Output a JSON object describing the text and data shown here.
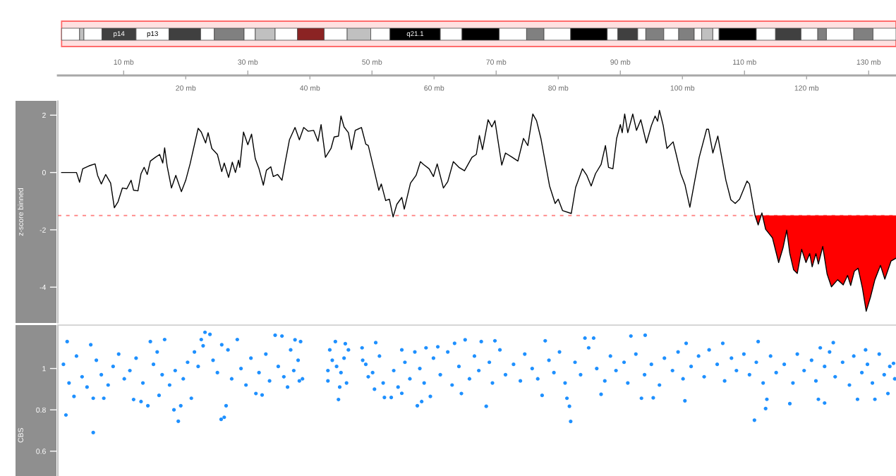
{
  "chart_data": [
    {
      "type": "bar",
      "orientation": "horizontal",
      "stacked": true,
      "categories": [
        null
      ],
      "series": [
        {
          "color": "#ffffff",
          "values": [
            2.9
          ]
        },
        {
          "color": "#c0c0c0",
          "values": [
            0.7
          ]
        },
        {
          "color": "#ffffff",
          "values": [
            2.9
          ]
        },
        {
          "name": "p14",
          "color": "#404040",
          "values": [
            5.5
          ]
        },
        {
          "name": "p13",
          "color": "#ffffff",
          "values": [
            5.3
          ]
        },
        {
          "color": "#404040",
          "values": [
            5.1
          ]
        },
        {
          "color": "#ffffff",
          "values": [
            2.2
          ]
        },
        {
          "color": "#808080",
          "values": [
            4.8
          ]
        },
        {
          "color": "#ffffff",
          "values": [
            1.8
          ]
        },
        {
          "color": "#c0c0c0",
          "values": [
            3.2
          ]
        },
        {
          "color": "#ffffff",
          "values": [
            3.6
          ]
        },
        {
          "color": "#8b2323",
          "values": [
            4.3
          ]
        },
        {
          "color": "#ffffff",
          "values": [
            3.7
          ]
        },
        {
          "color": "#c0c0c0",
          "values": [
            3.8
          ]
        },
        {
          "color": "#ffffff",
          "values": [
            3.1
          ]
        },
        {
          "name": "q21.1",
          "color": "#000000",
          "values": [
            8.1
          ]
        },
        {
          "color": "#ffffff",
          "values": [
            3.5
          ]
        },
        {
          "color": "#000000",
          "values": [
            6.0
          ]
        },
        {
          "color": "#ffffff",
          "values": [
            4.4
          ]
        },
        {
          "color": "#808080",
          "values": [
            2.8
          ]
        },
        {
          "color": "#ffffff",
          "values": [
            4.3
          ]
        },
        {
          "color": "#000000",
          "values": [
            5.9
          ]
        },
        {
          "color": "#ffffff",
          "values": [
            1.7
          ]
        },
        {
          "color": "#404040",
          "values": [
            3.2
          ]
        },
        {
          "color": "#ffffff",
          "values": [
            1.3
          ]
        },
        {
          "color": "#808080",
          "values": [
            2.9
          ]
        },
        {
          "color": "#ffffff",
          "values": [
            2.4
          ]
        },
        {
          "color": "#808080",
          "values": [
            2.5
          ]
        },
        {
          "color": "#ffffff",
          "values": [
            1.2
          ]
        },
        {
          "color": "#c0c0c0",
          "values": [
            1.8
          ]
        },
        {
          "color": "#ffffff",
          "values": [
            1.0
          ]
        },
        {
          "color": "#000000",
          "values": [
            6.0
          ]
        },
        {
          "color": "#ffffff",
          "values": [
            3.1
          ]
        },
        {
          "color": "#404040",
          "values": [
            4.1
          ]
        },
        {
          "color": "#ffffff",
          "values": [
            2.7
          ]
        },
        {
          "color": "#808080",
          "values": [
            1.4
          ]
        },
        {
          "color": "#ffffff",
          "values": [
            4.4
          ]
        },
        {
          "color": "#808080",
          "values": [
            3.1
          ]
        },
        {
          "color": "#ffffff",
          "values": [
            3.7
          ]
        }
      ],
      "xlim": [
        -0.6,
        134.4
      ],
      "xticks": [
        {
          "value": 20,
          "label": "20 mb"
        },
        {
          "value": 40,
          "label": "40 mb"
        },
        {
          "value": 60,
          "label": "60 mb"
        },
        {
          "value": 80,
          "label": "80 mb"
        },
        {
          "value": 100,
          "label": "100 mb"
        },
        {
          "value": 120,
          "label": "120 mb"
        }
      ],
      "x2lim": [
        -0.6,
        134.4
      ],
      "x2ticks": [
        {
          "value": 10,
          "label": "10 mb"
        },
        {
          "value": 30,
          "label": "30 mb"
        },
        {
          "value": 50,
          "label": "50 mb"
        },
        {
          "value": 70,
          "label": "70 mb"
        },
        {
          "value": 90,
          "label": "90 mb"
        },
        {
          "value": 110,
          "label": "110 mb"
        },
        {
          "value": 130,
          "label": "130 mb"
        }
      ],
      "bands": [
        {
          "axis": "x",
          "from": 0,
          "to": 134.4,
          "color": "#ff0000"
        }
      ],
      "tick_labels": "x"
    },
    {
      "type": "line",
      "ylabel": "z-score binned",
      "series": [
        {
          "color": "#000000",
          "x": [
            0.0,
            2.4,
            2.9,
            3.4,
            4.4,
            5.4,
            5.8,
            6.4,
            7.1,
            7.9,
            8.5,
            9.1,
            9.8,
            10.5,
            11.2,
            11.6,
            12.3,
            12.8,
            13.3,
            13.8,
            14.3,
            15.1,
            15.8,
            16.3,
            16.6,
            17.0,
            17.7,
            18.4,
            19.3,
            20.0,
            20.7,
            22.0,
            22.5,
            23.2,
            23.6,
            24.2,
            25.1,
            25.8,
            26.2,
            26.9,
            27.5,
            28.0,
            28.5,
            28.7,
            29.3,
            30.0,
            30.6,
            31.2,
            31.8,
            32.5,
            33.0,
            33.7,
            34.1,
            34.8,
            35.5,
            36.0,
            36.7,
            37.6,
            38.3,
            39.0,
            39.7,
            40.6,
            41.3,
            41.8,
            42.5,
            43.4,
            43.9,
            44.6,
            45.0,
            45.5,
            46.2,
            46.7,
            47.3,
            48.3,
            49.0,
            49.4,
            50.4,
            51.1,
            51.5,
            52.2,
            52.8,
            53.4,
            54.0,
            54.8,
            55.2,
            56.2,
            57.1,
            57.8,
            58.3,
            59.2,
            59.9,
            60.5,
            61.5,
            62.2,
            63.1,
            64.0,
            64.9,
            66.1,
            66.8,
            67.3,
            67.8,
            68.7,
            69.3,
            69.8,
            70.9,
            71.5,
            72.6,
            73.5,
            74.4,
            75.1,
            75.9,
            76.5,
            77.2,
            78.6,
            79.5,
            80.0,
            80.7,
            82.1,
            82.8,
            83.9,
            84.6,
            85.3,
            86.0,
            86.9,
            87.6,
            88.1,
            88.8,
            89.4,
            90.0,
            90.3,
            90.7,
            91.2,
            92.0,
            92.6,
            93.3,
            94.2,
            95.0,
            95.6,
            96.0,
            96.3,
            96.9,
            97.5,
            98.5,
            99.0,
            99.7,
            100.4,
            101.2,
            102.0,
            102.7,
            103.9,
            104.2,
            104.9,
            105.7,
            107.0,
            107.8,
            108.5,
            109.2,
            110.4,
            110.8,
            111.7,
            112.2,
            112.8,
            113.4,
            114.5,
            115.5,
            116.2,
            116.8,
            117.3,
            117.9,
            118.5,
            119.2,
            119.9,
            120.5,
            120.9,
            121.5,
            121.9,
            122.6,
            123.3,
            124.0,
            125.0,
            125.9,
            126.6,
            127.1,
            127.7,
            128.3,
            129.0,
            129.6,
            130.3,
            131.0,
            131.9,
            132.6,
            133.6,
            134.4
          ],
          "values": [
            0.0,
            0.0,
            -0.34,
            0.13,
            0.23,
            0.3,
            -0.1,
            -0.4,
            -0.07,
            -0.37,
            -1.23,
            -1.02,
            -0.54,
            -0.57,
            -0.27,
            -0.62,
            -0.64,
            -0.04,
            0.18,
            -0.07,
            0.4,
            0.53,
            0.63,
            0.33,
            0.86,
            0.23,
            -0.54,
            -0.1,
            -0.67,
            -0.27,
            0.3,
            1.54,
            1.41,
            1.03,
            1.39,
            0.84,
            0.63,
            0.03,
            0.33,
            -0.17,
            0.36,
            0.0,
            0.43,
            0.18,
            1.41,
            0.97,
            1.34,
            0.48,
            0.13,
            -0.44,
            0.08,
            0.2,
            -0.14,
            -0.07,
            -0.27,
            0.33,
            1.14,
            1.57,
            1.14,
            1.57,
            1.44,
            1.47,
            1.09,
            1.67,
            0.53,
            0.84,
            1.24,
            1.27,
            1.97,
            1.59,
            1.39,
            0.8,
            1.47,
            1.57,
            0.99,
            0.94,
            0.03,
            -0.62,
            -0.4,
            -0.98,
            -0.93,
            -1.55,
            -1.11,
            -0.87,
            -1.28,
            -0.37,
            -0.1,
            0.38,
            0.28,
            0.13,
            -0.14,
            0.3,
            -0.54,
            -0.32,
            0.38,
            0.18,
            0.06,
            0.53,
            0.63,
            1.29,
            0.8,
            1.84,
            1.59,
            1.81,
            0.26,
            0.68,
            0.53,
            0.4,
            1.19,
            0.94,
            2.04,
            1.81,
            1.19,
            -0.47,
            -1.08,
            -0.93,
            -1.33,
            -1.43,
            -0.52,
            0.13,
            -0.1,
            -0.47,
            -0.04,
            0.28,
            0.94,
            0.18,
            0.13,
            1.19,
            1.67,
            1.39,
            2.04,
            1.39,
            2.04,
            1.47,
            1.84,
            1.03,
            1.64,
            1.97,
            1.79,
            2.17,
            1.64,
            0.84,
            1.07,
            0.63,
            -0.02,
            -0.42,
            -1.21,
            -0.27,
            0.53,
            1.51,
            1.51,
            0.68,
            1.27,
            -0.27,
            -0.95,
            -1.08,
            -0.93,
            -0.3,
            -0.4,
            -1.5,
            -1.83,
            -1.41,
            -1.98,
            -2.28,
            -3.14,
            -2.63,
            -2.01,
            -2.83,
            -3.39,
            -3.52,
            -2.68,
            -3.14,
            -2.83,
            -3.29,
            -2.83,
            -3.19,
            -2.58,
            -3.54,
            -3.99,
            -3.74,
            -3.92,
            -3.59,
            -3.94,
            -3.44,
            -3.34,
            -4.04,
            -4.84,
            -4.34,
            -3.74,
            -3.24,
            -3.72,
            -3.09,
            -2.99
          ]
        },
        {
          "type": "area",
          "color": "#ff0000",
          "x": [
            111.7,
            112.2,
            112.8,
            113.4,
            114.5,
            115.5,
            116.2,
            116.8,
            117.3,
            117.9,
            118.5,
            119.2,
            119.9,
            120.5,
            120.9,
            121.5,
            121.9,
            122.6,
            123.3,
            124.0,
            125.0,
            125.9,
            126.6,
            127.1,
            127.7,
            128.3,
            129.0,
            129.6,
            130.3,
            131.0,
            131.9,
            132.6,
            133.6,
            134.4
          ],
          "values": [
            -1.5,
            -1.83,
            -1.41,
            -1.98,
            -2.28,
            -3.14,
            -2.63,
            -2.01,
            -2.83,
            -3.39,
            -3.52,
            -2.68,
            -3.14,
            -2.83,
            -3.29,
            -2.83,
            -3.19,
            -2.58,
            -3.54,
            -3.99,
            -3.74,
            -3.92,
            -3.59,
            -3.94,
            -3.44,
            -3.34,
            -4.04,
            -4.84,
            -4.34,
            -3.74,
            -3.24,
            -3.72,
            -3.09,
            -2.99
          ]
        }
      ],
      "xlim": [
        -0.6,
        134.4
      ],
      "ylim": [
        -5.25,
        2.5
      ],
      "yticks": [
        -4,
        -2,
        0,
        2
      ],
      "ref_lines": [
        {
          "axis": "y",
          "value": -1.5,
          "color": "#ff7f7f",
          "line_style": "dashed"
        }
      ],
      "line_style": "solid",
      "tick_labels": "y"
    },
    {
      "type": "scatter",
      "ylabel": "CBS",
      "marker": "circle",
      "series": [
        {
          "color": "#1e90ff",
          "x": [
            0.3,
            0.7,
            0.9,
            1.2,
            2.0,
            2.4,
            3.3,
            4.1,
            4.7,
            5.1,
            5.1,
            5.6,
            6.4,
            6.8,
            7.5,
            8.3,
            9.2,
            10.1,
            11.0,
            11.6,
            12.0,
            12.8,
            13.1,
            13.9,
            14.3,
            14.8,
            15.4,
            15.7,
            16.2,
            16.6,
            17.4,
            18.1,
            18.3,
            18.8,
            19.2,
            19.6,
            20.3,
            20.9,
            21.4,
            22.0,
            22.5,
            22.8,
            23.1,
            23.9,
            24.4,
            25.1,
            25.7,
            25.8,
            26.2,
            26.5,
            26.8,
            27.4,
            28.3,
            28.9,
            29.7,
            30.5,
            31.3,
            31.8,
            32.3,
            32.9,
            33.5,
            34.4,
            34.9,
            35.5,
            35.8,
            36.4,
            36.9,
            37.4,
            37.6,
            38.1,
            38.3,
            38.5,
            38.8,
            42.9,
            42.9,
            43.2,
            43.6,
            44.1,
            44.3,
            44.6,
            44.8,
            45.0,
            45.5,
            45.7,
            45.9,
            46.2,
            48.4,
            48.5,
            49.0,
            49.4,
            50.1,
            50.4,
            50.6,
            51.2,
            51.8,
            52.0,
            53.1,
            53.5,
            54.2,
            54.8,
            54.8,
            55.3,
            56.1,
            56.9,
            57.3,
            57.7,
            58.0,
            58.4,
            58.7,
            59.4,
            59.9,
            60.6,
            61.0,
            62.2,
            62.9,
            63.3,
            64.0,
            64.4,
            65.0,
            65.7,
            66.5,
            67.2,
            67.6,
            68.4,
            68.9,
            69.4,
            69.8,
            70.6,
            71.5,
            72.8,
            73.9,
            74.6,
            75.8,
            76.7,
            77.4,
            77.9,
            78.5,
            79.3,
            80.2,
            81.1,
            81.4,
            81.8,
            82.0,
            82.7,
            83.6,
            84.3,
            84.9,
            85.7,
            86.2,
            86.9,
            87.5,
            88.4,
            89.3,
            90.6,
            91.2,
            91.7,
            92.5,
            93.4,
            93.9,
            94.0,
            95.0,
            95.3,
            96.3,
            97.1,
            98.4,
            99.3,
            100.1,
            100.4,
            100.6,
            101.4,
            102.6,
            103.5,
            104.3,
            105.6,
            106.5,
            106.8,
            107.9,
            108.7,
            109.9,
            110.8,
            111.6,
            111.9,
            112.2,
            113.0,
            113.4,
            113.6,
            114.2,
            115.1,
            116.4,
            117.3,
            117.8,
            118.5,
            119.6,
            120.8,
            121.5,
            121.9,
            122.2,
            122.9,
            122.9,
            123.7,
            124.3,
            124.6,
            125.8,
            126.9,
            127.6,
            128.2,
            128.9,
            129.5,
            129.8,
            130.6,
            131.0,
            131.7,
            132.5,
            133.1,
            133.4,
            134.0,
            134.2
          ],
          "values": [
            1.02,
            0.775,
            1.13,
            0.93,
            0.865,
            1.06,
            0.96,
            0.91,
            1.115,
            0.69,
            0.856,
            1.04,
            0.97,
            0.856,
            0.92,
            1.01,
            1.07,
            0.95,
            0.99,
            0.85,
            1.05,
            0.84,
            0.93,
            0.82,
            1.13,
            1.02,
            1.08,
            0.87,
            0.97,
            1.14,
            0.92,
            0.8,
            0.99,
            0.745,
            0.82,
            0.95,
            1.03,
            0.856,
            1.08,
            1.01,
            1.14,
            1.11,
            1.175,
            1.165,
            1.04,
            0.98,
            0.754,
            1.115,
            0.764,
            0.82,
            1.09,
            0.95,
            1.14,
            1.0,
            0.92,
            1.05,
            0.879,
            0.98,
            0.872,
            1.07,
            0.94,
            1.161,
            1.01,
            1.157,
            0.96,
            0.91,
            1.09,
            0.99,
            1.139,
            1.04,
            0.94,
            1.13,
            0.95,
            0.99,
            0.94,
            1.09,
            1.04,
            1.13,
            1.01,
            0.85,
            0.91,
            0.98,
            1.05,
            1.12,
            0.93,
            1.09,
            1.1,
            1.04,
            1.02,
            0.96,
            0.98,
            0.9,
            1.125,
            1.06,
            0.93,
            0.86,
            0.86,
            0.99,
            0.91,
            0.88,
            1.09,
            1.03,
            0.95,
            1.08,
            0.82,
            1.0,
            0.84,
            0.93,
            1.1,
            0.865,
            1.05,
            1.105,
            0.97,
            1.08,
            0.92,
            1.122,
            1.01,
            0.879,
            1.139,
            0.95,
            1.06,
            0.99,
            1.13,
            0.817,
            1.03,
            0.93,
            1.134,
            1.09,
            0.97,
            1.02,
            0.94,
            1.07,
            1.0,
            0.95,
            0.87,
            1.134,
            1.04,
            0.98,
            1.08,
            0.93,
            0.856,
            0.817,
            0.744,
            1.03,
            0.97,
            1.147,
            1.1,
            1.147,
            1.0,
            0.875,
            0.94,
            1.06,
            0.99,
            1.03,
            0.93,
            1.157,
            1.07,
            0.856,
            0.97,
            1.161,
            1.02,
            0.858,
            0.92,
            1.05,
            0.99,
            1.08,
            0.95,
            0.844,
            1.122,
            1.01,
            1.06,
            0.96,
            1.09,
            1.02,
            1.122,
            0.94,
            1.05,
            0.99,
            1.07,
            0.97,
            0.75,
            1.03,
            1.13,
            0.93,
            0.806,
            0.851,
            1.06,
            0.98,
            1.02,
            0.83,
            0.93,
            1.07,
            0.99,
            1.04,
            0.94,
            0.851,
            1.1,
            1.01,
            0.833,
            1.08,
            1.125,
            0.96,
            1.03,
            0.92,
            1.06,
            0.851,
            0.98,
            1.09,
            1.02,
            0.93,
            0.851,
            1.07,
            0.97,
            0.879,
            1.01,
            1.025,
            0.95
          ]
        }
      ],
      "xlim": [
        -0.6,
        134.4
      ],
      "ylim": [
        0.48,
        1.21
      ],
      "yticks": [
        0.6,
        0.8,
        1
      ],
      "tick_labels": "y"
    }
  ]
}
